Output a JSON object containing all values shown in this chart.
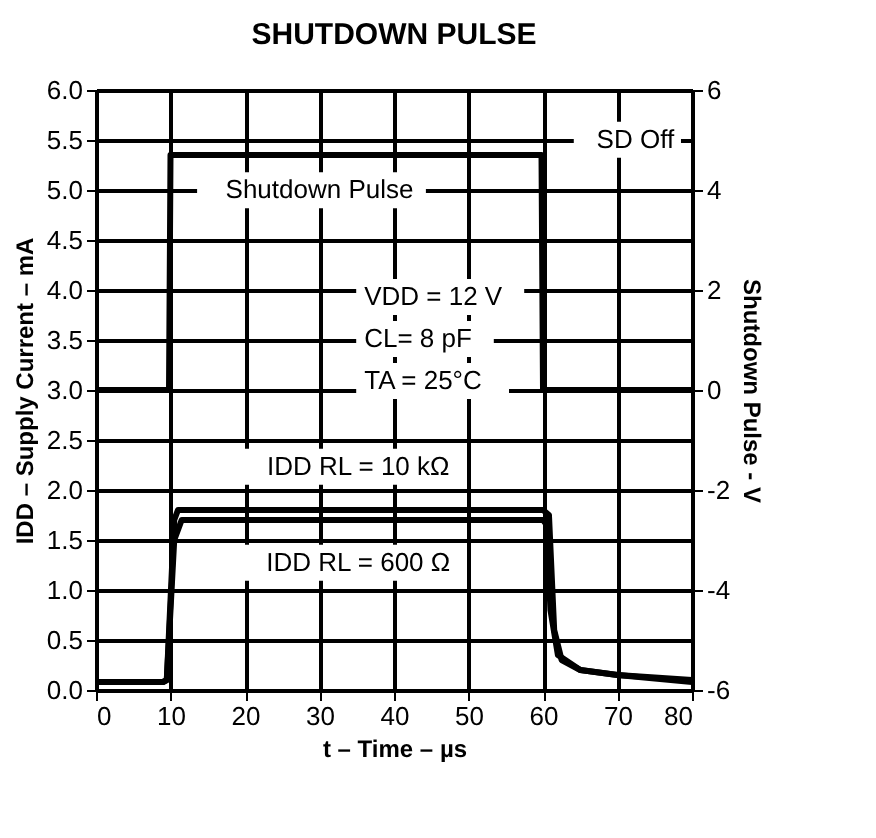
{
  "chart_data": {
    "type": "line",
    "title": "SHUTDOWN PULSE",
    "xlabel": "t – Time – µs",
    "ylabel": "IDD – Supply Current – mA",
    "y2label": "Shutdown Pulse - V",
    "xlim": [
      0,
      80
    ],
    "xticks": [
      0,
      10,
      20,
      30,
      40,
      50,
      60,
      70,
      80
    ],
    "ylim": [
      0,
      6
    ],
    "yticks": [
      {
        "value": 0,
        "label": "0.0"
      },
      0.5,
      {
        "value": 1,
        "label": "1.0"
      },
      1.5,
      {
        "value": 2,
        "label": "2.0"
      },
      2.5,
      {
        "value": 3,
        "label": "3.0"
      },
      3.5,
      {
        "value": 4,
        "label": "4.0"
      },
      4.5,
      {
        "value": 5,
        "label": "5.0"
      },
      5.5,
      {
        "value": 6,
        "label": "6.0"
      }
    ],
    "y2lim": [
      -6,
      6
    ],
    "y2ticks": [
      -6,
      -4,
      -2,
      0,
      2,
      4,
      6
    ],
    "grid": true,
    "legend": false,
    "marker": "none",
    "line_style": "solid",
    "series": [
      {
        "color": "#000000",
        "axis": "y2",
        "x": [
          0,
          9.8,
          10,
          59.8,
          60,
          80
        ],
        "values": [
          0,
          0,
          4.7,
          4.7,
          0,
          0
        ]
      },
      {
        "color": "#000000",
        "x": [
          0,
          9,
          9.5,
          10.5,
          11,
          60,
          60.8,
          61.5,
          62.5,
          65,
          70,
          80
        ],
        "values": [
          0.08,
          0.08,
          0.1,
          1.7,
          1.8,
          1.8,
          1.75,
          0.6,
          0.3,
          0.2,
          0.15,
          0.08
        ]
      },
      {
        "color": "#000000",
        "x": [
          0,
          9,
          9.5,
          10.5,
          11.5,
          60,
          60.5,
          61,
          62,
          65,
          70,
          80
        ],
        "values": [
          0.08,
          0.08,
          0.1,
          1.5,
          1.7,
          1.7,
          1.65,
          0.8,
          0.35,
          0.2,
          0.15,
          0.1
        ]
      }
    ],
    "annotations": [
      "Shutdown Pulse",
      "SD Off",
      "IDD RL = 10 kΩ",
      "IDD RL = 600 Ω",
      "VDD = 12 V",
      "CL= 8 pF",
      "TA = 25°C"
    ]
  }
}
